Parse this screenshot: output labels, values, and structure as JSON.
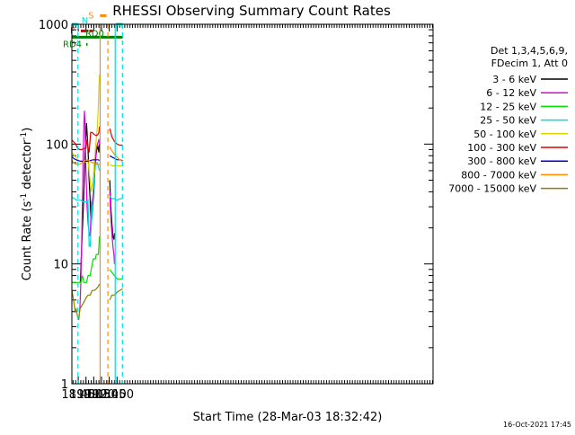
{
  "chart_data": {
    "type": "line",
    "title": "RHESSI Observing Summary Count Rates",
    "xlabel": "Start Time (28-Mar-03 18:32:42)",
    "ylabel_main": "Count Rate (s",
    "ylabel_sup1": "-1",
    "ylabel_mid": " detector",
    "ylabel_sup2": "-1",
    "ylabel_end": ")",
    "footer_date": "16-Oct-2021 17:45",
    "x_range_min": [
      1112.7,
      1811
    ],
    "y_log": true,
    "y_range": [
      1,
      1000
    ],
    "x_ticks": [
      {
        "v": 1125,
        "label": "18:45"
      },
      {
        "v": 1140,
        "label": "19:00"
      },
      {
        "v": 1155,
        "label": "19:15"
      },
      {
        "v": 1170,
        "label": "19:30"
      },
      {
        "v": 1185,
        "label": "19:45"
      },
      {
        "v": 1200,
        "label": "20:00"
      }
    ],
    "x_minor_every_min": 5,
    "y_ticks": [
      {
        "v": 1,
        "label": "1"
      },
      {
        "v": 10,
        "label": "10"
      },
      {
        "v": 100,
        "label": "100"
      },
      {
        "v": 1000,
        "label": "1000"
      }
    ],
    "legend_header": [
      "Det 1,3,4,5,6,9,",
      "FDecim 1, Att 0"
    ],
    "series": [
      {
        "name": "3 - 6 keV",
        "color": "#000000",
        "x": [
          1112.7,
          1122,
          1126,
          1129,
          1132,
          1135,
          1137,
          1139,
          1141,
          1144,
          1146,
          1148,
          1149,
          1150,
          1151,
          1152,
          1153,
          1155,
          1157,
          1159,
          1161,
          1163,
          1165,
          1166
        ],
        "y": [
          null,
          null,
          null,
          7,
          15,
          30,
          55,
          100,
          150,
          90,
          50,
          35,
          26,
          23,
          24,
          26,
          30,
          40,
          60,
          80,
          90,
          95,
          85,
          100
        ]
      },
      {
        "name": "6 - 12 keV",
        "color": "#e000e0",
        "x": [
          1112.7,
          1121,
          1125,
          1128,
          1130,
          1132,
          1134,
          1136,
          1137,
          1138,
          1140,
          1142,
          1144,
          1146,
          1148,
          1149,
          1150,
          1151,
          1152,
          1154,
          1156,
          1158,
          1160,
          1162,
          1164,
          1165,
          1166
        ],
        "y": [
          null,
          null,
          null,
          4,
          7,
          18,
          60,
          150,
          190,
          150,
          60,
          30,
          22,
          18,
          17,
          22,
          30,
          33,
          34,
          40,
          55,
          75,
          90,
          100,
          105,
          110,
          100
        ]
      },
      {
        "name": "12 - 25 keV",
        "color": "#00e000",
        "x": [
          1112.7,
          1120,
          1125,
          1128,
          1130,
          1133,
          1136,
          1139,
          1141,
          1144,
          1146,
          1148,
          1150,
          1152,
          1154,
          1156,
          1158,
          1160,
          1162,
          1164,
          1165,
          1166
        ],
        "y": [
          7,
          7,
          7,
          7,
          7,
          8,
          7,
          7,
          7,
          8,
          8,
          8,
          9,
          10,
          11,
          11,
          11,
          12,
          12,
          12,
          14,
          17
        ]
      },
      {
        "name": "25 - 50 keV",
        "color": "#00dddd",
        "x": [
          1112.7,
          1118,
          1122,
          1126,
          1130,
          1134,
          1138,
          1142,
          1144,
          1146,
          1148,
          1149,
          1150,
          1152,
          1154,
          1156,
          1158,
          1160,
          1162,
          1164,
          1165,
          1166
        ],
        "y": [
          36,
          35,
          34,
          34,
          34,
          33,
          33,
          33,
          34,
          14,
          14,
          17,
          20,
          28,
          40,
          55,
          65,
          70,
          70,
          65,
          62,
          60
        ]
      },
      {
        "name": "50 - 100 keV",
        "color": "#d8d800",
        "x": [
          1112.7,
          1118,
          1124,
          1128,
          1132,
          1136,
          1140,
          1144,
          1146,
          1150,
          1152,
          1154,
          1156,
          1158,
          1160,
          1162,
          1164,
          1165,
          1166
        ],
        "y": [
          85,
          80,
          74,
          72,
          72,
          72,
          71,
          72,
          60,
          40,
          45,
          52,
          70,
          92,
          110,
          140,
          210,
          300,
          380
        ]
      },
      {
        "name": "100 - 300 keV",
        "color": "#e00000",
        "x": [
          1112.7,
          1115,
          1120,
          1124,
          1128,
          1132,
          1136,
          1140,
          1142,
          1145,
          1146,
          1149,
          1152,
          1156,
          1160,
          1163,
          1165,
          1166
        ],
        "y": [
          108,
          106,
          100,
          92,
          90,
          90,
          92,
          92,
          110,
          88,
          85,
          125,
          125,
          120,
          118,
          120,
          125,
          140
        ]
      },
      {
        "name": "300 - 800 keV",
        "color": "#0000d0",
        "x": [
          1112.7,
          1118,
          1124,
          1130,
          1136,
          1142,
          1148,
          1154,
          1160,
          1164,
          1166
        ],
        "y": [
          78,
          75,
          73,
          72,
          72,
          72,
          73,
          74,
          74,
          74,
          73
        ]
      },
      {
        "name": "800 - 7000 keV",
        "color": "#ff8c00",
        "x": [
          1112.7,
          1116,
          1120,
          1124,
          1128,
          1132,
          1136,
          1140,
          1144,
          1148,
          1152,
          1156,
          1160,
          1164,
          1166
        ],
        "y": [
          74,
          70,
          68,
          68,
          68,
          70,
          72,
          74,
          74,
          72,
          70,
          69,
          68,
          67,
          68
        ]
      },
      {
        "name": "7000 - 15000 keV",
        "color": "#8b7e00",
        "x": [
          1112.7,
          1116,
          1119,
          1121,
          1124,
          1126,
          1128,
          1132,
          1136,
          1140,
          1144,
          1148,
          1152,
          1156,
          1160,
          1164,
          1166
        ],
        "y": [
          6,
          5,
          4,
          4.2,
          3.6,
          3.4,
          4.2,
          4.5,
          4.8,
          5.2,
          5.5,
          5.5,
          6,
          6,
          6.2,
          6.5,
          6.8
        ]
      }
    ],
    "series_after_gap": [
      {
        "name": "3 - 6 keV",
        "x": [
          1186,
          1188,
          1190,
          1192,
          1194,
          1195
        ],
        "y": [
          50,
          30,
          22,
          17,
          16,
          18
        ]
      },
      {
        "name": "6 - 12 keV",
        "x": [
          1186,
          1188,
          1190,
          1192,
          1194,
          1195
        ],
        "y": [
          40,
          25,
          18,
          14,
          12,
          10
        ]
      },
      {
        "name": "12 - 25 keV",
        "x": [
          1186,
          1190,
          1195,
          1200,
          1205,
          1211
        ],
        "y": [
          9,
          8.5,
          8,
          7.5,
          7.5,
          7.5
        ]
      },
      {
        "name": "25 - 50 keV",
        "x": [
          1186,
          1190,
          1195,
          1200,
          1205,
          1211
        ],
        "y": [
          37,
          35,
          35,
          34,
          35,
          35
        ]
      },
      {
        "name": "50 - 100 keV",
        "x": [
          1186,
          1190,
          1195,
          1200,
          1205,
          1211
        ],
        "y": [
          68,
          66,
          66,
          66,
          66,
          66
        ]
      },
      {
        "name": "100 - 300 keV",
        "x": [
          1186,
          1190,
          1195,
          1200,
          1205,
          1211
        ],
        "y": [
          135,
          115,
          105,
          100,
          98,
          98
        ]
      },
      {
        "name": "300 - 800 keV",
        "x": [
          1186,
          1190,
          1195,
          1200,
          1205,
          1211
        ],
        "y": [
          80,
          78,
          76,
          74,
          74,
          73
        ]
      },
      {
        "name": "800 - 7000 keV",
        "x": [
          1186,
          1190,
          1195,
          1200,
          1205,
          1211
        ],
        "y": [
          95,
          88,
          82,
          78,
          74,
          72
        ]
      },
      {
        "name": "7000 - 15000 keV",
        "x": [
          1186,
          1190,
          1195,
          1200,
          1205,
          1211
        ],
        "y": [
          5,
          5.5,
          5.5,
          5.8,
          6,
          6.2
        ]
      }
    ],
    "flag_bars": [
      {
        "label": "N",
        "color": "#00dddd",
        "y": 1000,
        "ranges": [
          [
            1112.7,
            1124.5
          ],
          [
            1197.5,
            1211
          ]
        ]
      },
      {
        "label": "F",
        "color": "#e00000",
        "y": 880,
        "ranges": [
          [
            1130,
            1144.5
          ],
          [
            1147,
            1153
          ]
        ]
      },
      {
        "label": "S",
        "color": "#ff8c00",
        "y": 1180,
        "ranges": [
          [
            1167,
            1179.5
          ]
        ]
      },
      {
        "label": "RD0",
        "color": "#008000",
        "y": 780,
        "ranges": [
          [
            1112.7,
            1211
          ]
        ]
      },
      {
        "label": "RD4",
        "color": "#008000",
        "y": 680,
        "ranges": [
          [
            1140.5,
            1143
          ]
        ]
      }
    ],
    "vlines": [
      {
        "x": 1124.5,
        "color": "#00dddd",
        "style": "dashed"
      },
      {
        "x": 1167.3,
        "color": "#ff8c00",
        "style": "solid"
      },
      {
        "x": 1182.3,
        "color": "#ff8c00",
        "style": "dashed"
      },
      {
        "x": 1196.5,
        "color": "#00dddd",
        "style": "solid"
      },
      {
        "x": 1210.5,
        "color": "#00dddd",
        "style": "dashed"
      }
    ]
  }
}
